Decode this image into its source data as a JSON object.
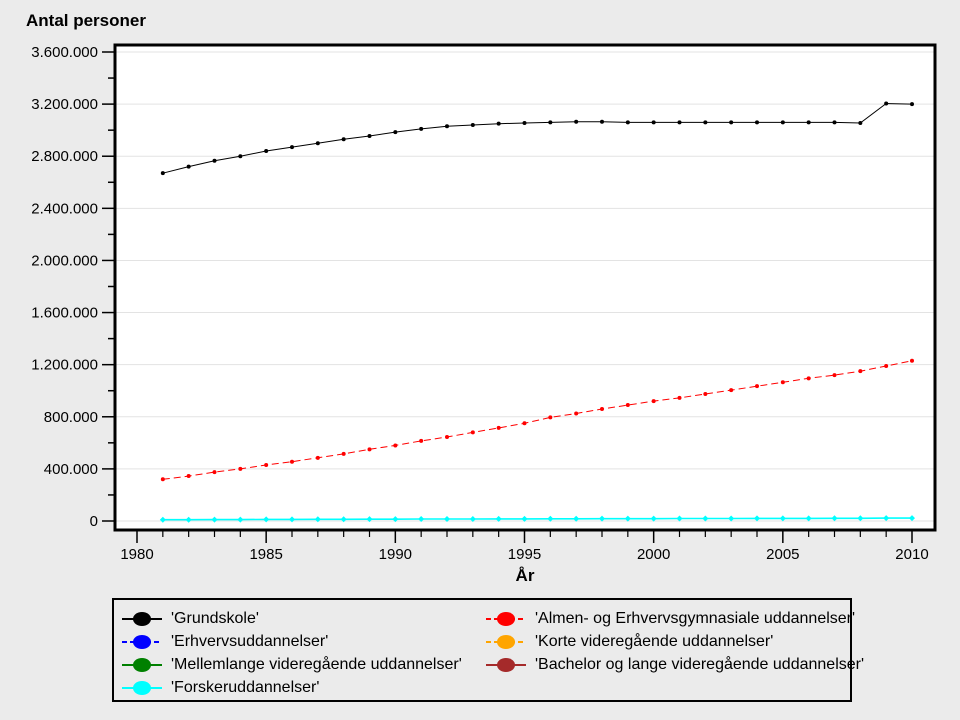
{
  "colors": {
    "page_background": "#EBEBEB",
    "plot_background": "#FFFFFF",
    "gridline": "#E3E3E3",
    "axis": "#000000"
  },
  "chart_data": {
    "type": "line",
    "title": "Antal personer",
    "xlabel": "År",
    "xlim": [
      1979.1,
      2010.9
    ],
    "ylim": [
      0,
      3600000
    ],
    "grid": "horizontal-only",
    "legend_position": "bottom",
    "x": [
      1981,
      1982,
      1983,
      1984,
      1985,
      1986,
      1987,
      1988,
      1989,
      1990,
      1991,
      1992,
      1993,
      1994,
      1995,
      1996,
      1997,
      1998,
      1999,
      2000,
      2001,
      2002,
      2003,
      2004,
      2005,
      2006,
      2007,
      2008,
      2009,
      2010
    ],
    "x_major_ticks": [
      1980,
      1985,
      1990,
      1995,
      2000,
      2005,
      2010
    ],
    "x_minor_tick_step": 1,
    "y_ticks": {
      "values": [
        0,
        400000,
        800000,
        1200000,
        1600000,
        2000000,
        2400000,
        2800000,
        3200000,
        3600000
      ],
      "labels": [
        "0",
        "400.000",
        "800.000",
        "1.200.000",
        "1.600.000",
        "2.000.000",
        "2.400.000",
        "2.800.000",
        "3.200.000",
        "3.600.000"
      ],
      "minor_step": 200000
    },
    "series": [
      {
        "id": "grundskole",
        "name": "'Grundskole'",
        "color": "#000000",
        "dash": "solid",
        "marker": "circle",
        "width": 1,
        "values": [
          2670000,
          2720000,
          2765000,
          2800000,
          2840000,
          2870000,
          2900000,
          2930000,
          2955000,
          2985000,
          3010000,
          3030000,
          3040000,
          3050000,
          3055000,
          3060000,
          3065000,
          3065000,
          3060000,
          3060000,
          3060000,
          3060000,
          3060000,
          3060000,
          3060000,
          3060000,
          3060000,
          3055000,
          3205000,
          3200000
        ]
      },
      {
        "id": "almen-og-erhvervsgymnasiale",
        "name": "'Almen- og Erhvervsgymnasiale uddannelser'",
        "color": "#FF0000",
        "dash": "dashed",
        "marker": "circle",
        "width": 1,
        "values": [
          320000,
          345000,
          375000,
          400000,
          430000,
          455000,
          485000,
          515000,
          550000,
          580000,
          615000,
          645000,
          680000,
          715000,
          750000,
          795000,
          825000,
          860000,
          890000,
          920000,
          945000,
          975000,
          1005000,
          1035000,
          1065000,
          1095000,
          1120000,
          1150000,
          1190000,
          1230000
        ]
      },
      {
        "id": "forskeruddannelser",
        "name": "'Forskeruddannelser'",
        "color": "#00FFFF",
        "dash": "solid",
        "marker": "diamond",
        "width": 1.6,
        "values": [
          10000,
          10000,
          11000,
          11000,
          12000,
          12000,
          13000,
          13000,
          14000,
          14000,
          15000,
          15000,
          15000,
          16000,
          16000,
          17000,
          17000,
          18000,
          18000,
          18000,
          19000,
          19000,
          19000,
          20000,
          20000,
          20000,
          21000,
          21000,
          22000,
          22000
        ]
      }
    ]
  },
  "legend": {
    "columns": [
      [
        {
          "label": "'Grundskole'",
          "color": "#000000",
          "dash": "solid"
        },
        {
          "label": "'Erhvervsuddannelser'",
          "color": "#0000FF",
          "dash": "dashed"
        },
        {
          "label": "'Mellemlange videregående uddannelser'",
          "color": "#008000",
          "dash": "solid"
        },
        {
          "label": "'Forskeruddannelser'",
          "color": "#00FFFF",
          "dash": "solid"
        }
      ],
      [
        {
          "label": "'Almen- og Erhvervsgymnasiale uddannelser'",
          "color": "#FF0000",
          "dash": "dashed"
        },
        {
          "label": "'Korte videregående uddannelser'",
          "color": "#FFA500",
          "dash": "dashed"
        },
        {
          "label": "'Bachelor og lange videregående uddannelser'",
          "color": "#A52A2A",
          "dash": "solid"
        }
      ]
    ]
  }
}
